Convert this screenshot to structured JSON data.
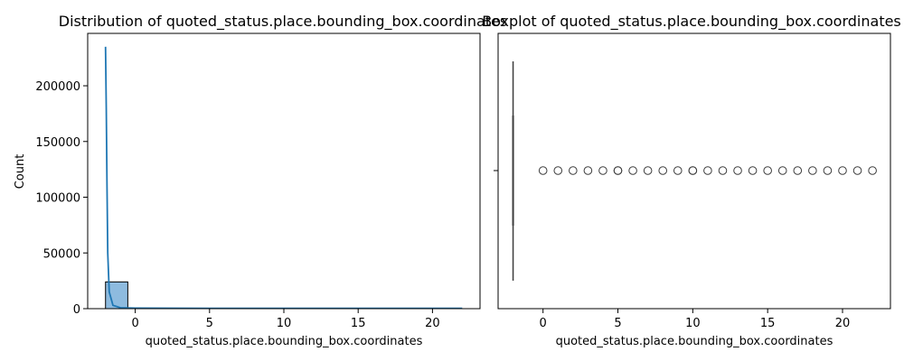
{
  "chart_data": [
    {
      "type": "histogram",
      "title": "Distribution of quoted_status.place.bounding_box.coordinates",
      "xlabel": "quoted_status.place.bounding_box.coordinates",
      "ylabel": "Count",
      "xlim": [
        -3.2,
        23.2
      ],
      "ylim": [
        0,
        247000
      ],
      "xticks": [
        0,
        5,
        10,
        15,
        20
      ],
      "yticks": [
        0,
        50000,
        100000,
        150000,
        200000
      ],
      "bin_edges": [
        -2.0,
        -0.5,
        1.0,
        2.5,
        4.0,
        5.5,
        7.0,
        8.5,
        10.0,
        11.5,
        13.0,
        14.5,
        16.0,
        17.5,
        19.0,
        20.5,
        22.0
      ],
      "counts": [
        24000,
        20,
        15,
        15,
        15,
        15,
        10,
        10,
        10,
        10,
        10,
        10,
        10,
        10,
        10,
        10
      ],
      "kde_x": [
        -2.0,
        -1.95,
        -1.9,
        -1.85,
        -1.75,
        -1.5,
        -1.0,
        0.0,
        5.0,
        10.0,
        15.0,
        20.0,
        22.0
      ],
      "kde_y": [
        235000,
        180000,
        110000,
        50000,
        15000,
        3000,
        800,
        500,
        300,
        300,
        300,
        300,
        300
      ],
      "bar_color": "#8ebbdf",
      "line_color": "#1f77b4"
    },
    {
      "type": "boxplot",
      "title": "Boxplot of quoted_status.place.bounding_box.coordinates",
      "xlabel": "quoted_status.place.bounding_box.coordinates",
      "xlim": [
        -3.0,
        23.2
      ],
      "xticks": [
        0,
        5,
        10,
        15,
        20,
        22
      ],
      "xticks_display": [
        0,
        5,
        10,
        15,
        20
      ],
      "median": -2,
      "q1": -2,
      "q3": -2,
      "whisker_low": -2,
      "whisker_high": -2,
      "outliers": [
        0,
        1,
        2,
        3,
        4,
        5,
        5,
        6,
        7,
        8,
        9,
        10,
        10,
        11,
        12,
        13,
        14,
        15,
        16,
        17,
        18,
        19,
        20,
        21,
        22
      ]
    }
  ]
}
